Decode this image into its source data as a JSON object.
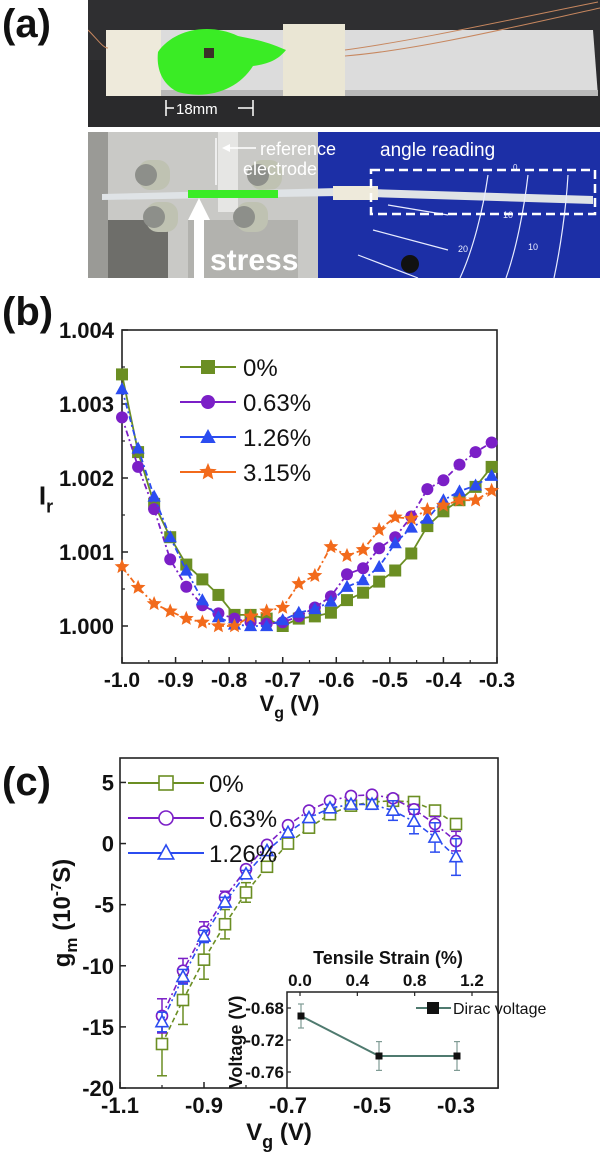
{
  "panels": {
    "a": {
      "label": "(a)",
      "photo_top": {
        "scale_label": "18mm"
      },
      "photo_bottom": {
        "arrow_label_1": "reference",
        "arrow_label_2": "electrode",
        "angle_label": "angle  reading",
        "stress_label": "stress",
        "dial_numbers": [
          "0",
          "10",
          "20",
          "10"
        ]
      }
    },
    "b": {
      "label": "(b)"
    },
    "c": {
      "label": "(c)"
    }
  },
  "chart_data": [
    {
      "type": "line",
      "title": "",
      "xlabel": "V",
      "xlabel_sub": "g",
      "xlabel_unit": " (V)",
      "ylabel": "I",
      "ylabel_sub": "r",
      "xlim": [
        -1.0,
        -0.3
      ],
      "ylim": [
        0.9995,
        1.004
      ],
      "xticks": [
        -1.0,
        -0.9,
        -0.8,
        -0.7,
        -0.6,
        -0.5,
        -0.4,
        -0.3
      ],
      "xtick_labels": [
        "-1.0",
        "-0.9",
        "-0.8",
        "-0.7",
        "-0.6",
        "-0.5",
        "-0.4",
        "-0.3"
      ],
      "yticks": [
        1.0,
        1.001,
        1.002,
        1.003,
        1.004
      ],
      "ytick_labels": [
        "1.000",
        "1.001",
        "1.002",
        "1.003",
        "1.004"
      ],
      "grid": false,
      "legend": "top-left",
      "x": [
        -1.0,
        -0.97,
        -0.94,
        -0.91,
        -0.88,
        -0.85,
        -0.82,
        -0.79,
        -0.76,
        -0.73,
        -0.7,
        -0.67,
        -0.64,
        -0.61,
        -0.58,
        -0.55,
        -0.52,
        -0.49,
        -0.46,
        -0.43,
        -0.4,
        -0.37,
        -0.34,
        -0.31
      ],
      "series": [
        {
          "name": "0%",
          "color": "#6b8e23",
          "marker": "square",
          "values": [
            1.0034,
            1.00235,
            1.00165,
            1.0012,
            1.00083,
            1.00063,
            1.00042,
            1.00015,
            1.00015,
            1.0001,
            1.0,
            1.0001,
            1.00013,
            1.00018,
            1.00035,
            1.00045,
            1.0006,
            1.00075,
            1.00098,
            1.00135,
            1.00155,
            1.0017,
            1.00188,
            1.00215
          ]
        },
        {
          "name": "0.63%",
          "color": "#7b1fc7",
          "marker": "circle",
          "values": [
            1.00282,
            1.00215,
            1.00158,
            1.0009,
            1.00053,
            1.00028,
            1.00017,
            1.0001,
            1.00005,
            1.00003,
            1.00005,
            1.00013,
            1.00025,
            1.0004,
            1.0007,
            1.00078,
            1.00105,
            1.0012,
            1.00148,
            1.00185,
            1.00197,
            1.00218,
            1.00235,
            1.00248
          ]
        },
        {
          "name": "1.26%",
          "color": "#2b4cf0",
          "marker": "triangle",
          "values": [
            1.0032,
            1.0024,
            1.00175,
            1.0012,
            1.00075,
            1.00035,
            1.00012,
            1.00002,
            1.0,
            1.0,
            1.00008,
            1.00018,
            1.00023,
            1.00033,
            1.00053,
            1.00062,
            1.0008,
            1.00112,
            1.00133,
            1.00145,
            1.0017,
            1.00182,
            1.0019,
            1.00203
          ]
        },
        {
          "name": "3.15%",
          "color": "#f26a1b",
          "marker": "star",
          "values": [
            1.0008,
            1.00052,
            1.0003,
            1.0002,
            1.0001,
            1.00005,
            1.0,
            1.0,
            1.00013,
            1.0002,
            1.00025,
            1.00057,
            1.00068,
            1.00107,
            1.00095,
            1.00103,
            1.0013,
            1.00147,
            1.00145,
            1.00157,
            1.00163,
            1.0017,
            1.0017,
            1.00183
          ]
        }
      ]
    },
    {
      "type": "line",
      "title": "",
      "xlabel": "V",
      "xlabel_sub": "g",
      "xlabel_unit": " (V)",
      "ylabel": "g",
      "ylabel_sub": "m",
      "ylabel_unit_pre": " (10",
      "ylabel_unit_sup": "-7",
      "ylabel_unit_post": "S)",
      "xlim": [
        -1.1,
        -0.2
      ],
      "ylim": [
        -20,
        7
      ],
      "xticks": [
        -1.1,
        -0.9,
        -0.7,
        -0.5,
        -0.3
      ],
      "xtick_labels": [
        "-1.1",
        "-0.9",
        "-0.7",
        "-0.5",
        "-0.3"
      ],
      "yticks": [
        -20,
        -15,
        -10,
        -5,
        0,
        5
      ],
      "ytick_labels": [
        "-20",
        "-15",
        "-10",
        "-5",
        "0",
        "5"
      ],
      "grid": false,
      "legend": "top-left",
      "x": [
        -1.0,
        -0.95,
        -0.9,
        -0.85,
        -0.8,
        -0.75,
        -0.7,
        -0.65,
        -0.6,
        -0.55,
        -0.5,
        -0.45,
        -0.4,
        -0.35,
        -0.3
      ],
      "series": [
        {
          "name": "0%",
          "color": "#6b8e23",
          "marker": "open-square",
          "values": [
            -16.4,
            -12.8,
            -9.5,
            -6.6,
            -4.0,
            -1.9,
            0.0,
            1.3,
            2.4,
            3.1,
            3.4,
            3.5,
            3.4,
            2.7,
            1.6
          ],
          "errors": [
            2.6,
            2.0,
            1.6,
            1.2,
            0.8,
            0.4,
            0.2,
            0.2,
            0.2,
            0.3,
            0.3,
            0.3,
            0.3,
            0.3,
            0.3
          ]
        },
        {
          "name": "0.63%",
          "color": "#7b1fc7",
          "marker": "open-circle",
          "values": [
            -14.1,
            -10.4,
            -7.2,
            -4.4,
            -2.1,
            -0.1,
            1.5,
            2.7,
            3.5,
            3.9,
            4.0,
            3.7,
            2.8,
            1.6,
            0.2
          ],
          "errors": [
            1.4,
            1.0,
            0.8,
            0.5,
            0.3,
            0.2,
            0.2,
            0.2,
            0.2,
            0.2,
            0.2,
            0.3,
            0.4,
            0.6,
            0.8
          ]
        },
        {
          "name": "1.26%",
          "color": "#2b4cf0",
          "marker": "open-triangle",
          "values": [
            -14.6,
            -10.9,
            -7.6,
            -4.8,
            -2.5,
            -0.6,
            0.9,
            2.1,
            2.9,
            3.2,
            3.2,
            2.7,
            1.8,
            0.5,
            -1.1
          ],
          "errors": [
            0.8,
            0.6,
            0.5,
            0.4,
            0.3,
            0.2,
            0.2,
            0.2,
            0.3,
            0.3,
            0.4,
            0.8,
            1.0,
            1.2,
            1.5
          ]
        }
      ],
      "inset": {
        "type": "line",
        "xlabel": "Tensile Strain (%)",
        "ylabel": "Voltage (V)",
        "xlim": [
          0.0,
          1.35
        ],
        "ylim": [
          -0.78,
          -0.66
        ],
        "xticks": [
          0.0,
          0.4,
          0.8,
          1.2
        ],
        "xtick_labels": [
          "0.0",
          "0.4",
          "0.8",
          "1.2"
        ],
        "yticks": [
          -0.68,
          -0.72,
          -0.76
        ],
        "ytick_labels": [
          "-0.68",
          "-0.72",
          "-0.76"
        ],
        "legend": "top-right",
        "series": [
          {
            "name": "Dirac voltage",
            "color": "#111111",
            "line_color": "#4f7a6f",
            "marker": "square",
            "x": [
              0.0,
              0.63,
              1.26
            ],
            "values": [
              -0.69,
              -0.74,
              -0.74
            ],
            "errors": [
              0.015,
              0.018,
              0.018
            ]
          }
        ]
      }
    }
  ]
}
